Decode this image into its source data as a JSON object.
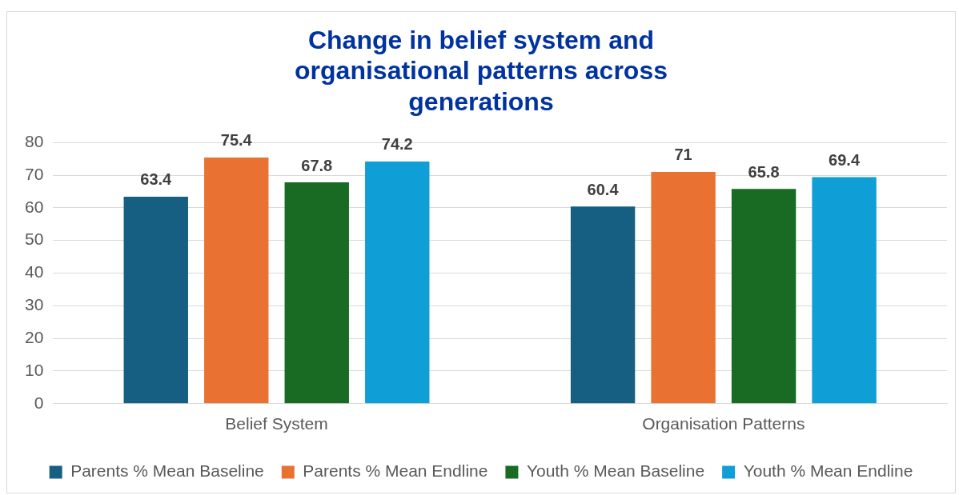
{
  "chart_data": {
    "type": "bar",
    "title": "Change in belief system and organisational patterns across generations",
    "categories": [
      "Belief System",
      "Organisation Patterns"
    ],
    "series": [
      {
        "name": "Parents % Mean Baseline",
        "color": "#175f82",
        "values": [
          63.4,
          60.4
        ]
      },
      {
        "name": "Parents % Mean Endline",
        "color": "#e97132",
        "values": [
          75.4,
          71
        ]
      },
      {
        "name": "Youth % Mean Baseline",
        "color": "#196b24",
        "values": [
          67.8,
          65.8
        ]
      },
      {
        "name": "Youth % Mean Endline",
        "color": "#0f9ed5",
        "values": [
          74.2,
          69.4
        ]
      }
    ],
    "ylim": [
      0,
      80
    ],
    "yticks": [
      0,
      10,
      20,
      30,
      40,
      50,
      60,
      70,
      80
    ],
    "grid": "y",
    "legend": "bottom",
    "data_labels": true
  }
}
